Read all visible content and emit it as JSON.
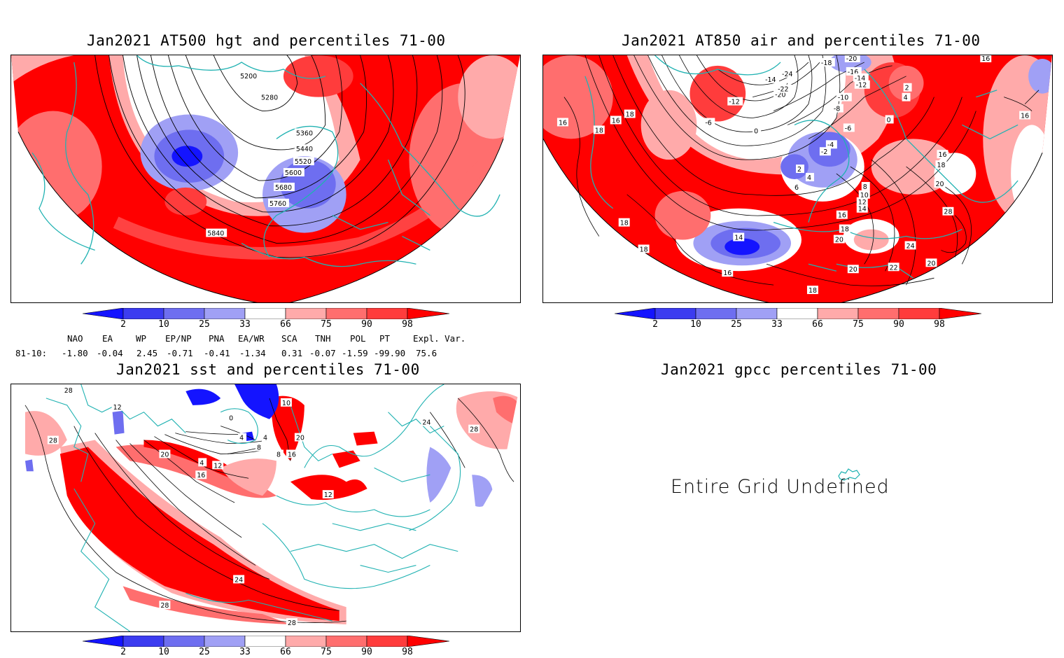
{
  "panels": {
    "hgt500": {
      "title": "Jan2021 AT500 hgt and percentiles 71-00",
      "contour_labels": [
        "5200",
        "5280",
        "5360",
        "5440",
        "5520",
        "5600",
        "5680",
        "5760",
        "5840"
      ]
    },
    "air850": {
      "title": "Jan2021 AT850 air and percentiles 71-00",
      "contour_labels": [
        "16",
        "18",
        "16",
        "18",
        "-12",
        "-6",
        "0",
        "-14",
        "-20",
        "-22",
        "-24",
        "-18",
        "-20",
        "-16",
        "-14",
        "-12",
        "-10",
        "-8",
        "-6",
        "-4",
        "-2",
        "2",
        "4",
        "6",
        "8",
        "10",
        "12",
        "14",
        "16",
        "18",
        "20",
        "0",
        "2",
        "4",
        "16",
        "18",
        "20",
        "28",
        "24",
        "20",
        "22",
        "20",
        "18",
        "16",
        "14",
        "18",
        "18",
        "16",
        "16"
      ]
    },
    "sst": {
      "title": "Jan2021 sst and percentiles 71-00",
      "contour_labels": [
        "28",
        "12",
        "28",
        "20",
        "0",
        "4",
        "12",
        "16",
        "4",
        "4",
        "8",
        "8",
        "16",
        "20",
        "12",
        "24",
        "28",
        "28",
        "24",
        "28",
        "10"
      ]
    },
    "gpcc": {
      "title": "Jan2021 gpcc percentiles 71-00",
      "message": "Entire Grid Undefined"
    }
  },
  "colorbar": {
    "labels": [
      "2",
      "10",
      "25",
      "33",
      "66",
      "75",
      "90",
      "98"
    ],
    "colors": [
      "#1414ff",
      "#3c3cf0",
      "#6e6ef0",
      "#a0a0f5",
      "#ffffff",
      "#ffaaaa",
      "#ff6e6e",
      "#ff3c3c",
      "#ff0000"
    ]
  },
  "teleconnections": {
    "header": [
      "NAO",
      "EA",
      "WP",
      "EP/NP",
      "PNA",
      "EA/WR",
      "SCA",
      "TNH",
      "POL",
      "PT",
      "Expl. Var."
    ],
    "row_label": "81-10:",
    "values": [
      "-1.80",
      "-0.04",
      "2.45",
      "-0.71",
      "-0.41",
      "-1.34",
      "0.31",
      "-0.07",
      "-1.59",
      "-99.90",
      "75.6"
    ]
  },
  "colors": {
    "coast": "#20b2b2",
    "contour": "#000000",
    "frame": "#000000"
  }
}
